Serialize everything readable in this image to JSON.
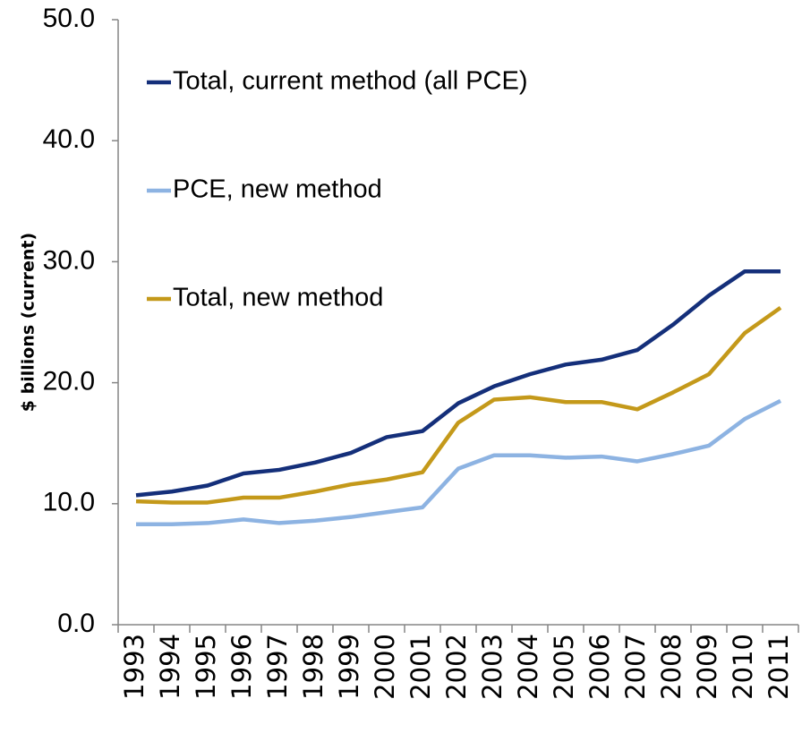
{
  "chart_data": {
    "type": "line",
    "y_label": "$ billions (current)",
    "categories": [
      "1993",
      "1994",
      "1995",
      "1996",
      "1997",
      "1998",
      "1999",
      "2000",
      "2001",
      "2002",
      "2003",
      "2004",
      "2005",
      "2006",
      "2007",
      "2008",
      "2009",
      "2010",
      "2011"
    ],
    "series": [
      {
        "name": "Total, current method (all PCE)",
        "color": "#142f7a",
        "values": [
          10.7,
          11.0,
          11.5,
          12.5,
          12.8,
          13.4,
          14.2,
          15.5,
          16.0,
          18.3,
          19.7,
          20.7,
          21.5,
          21.9,
          22.7,
          24.8,
          27.2,
          29.2,
          29.2
        ]
      },
      {
        "name": "PCE, new method",
        "color": "#8db3e2",
        "values": [
          8.3,
          8.3,
          8.4,
          8.7,
          8.4,
          8.6,
          8.9,
          9.3,
          9.7,
          12.9,
          14.0,
          14.0,
          13.8,
          13.9,
          13.5,
          14.1,
          14.8,
          17.0,
          18.5
        ]
      },
      {
        "name": "Total, new method",
        "color": "#c4991a",
        "values": [
          10.2,
          10.1,
          10.1,
          10.5,
          10.5,
          11.0,
          11.6,
          12.0,
          12.6,
          16.7,
          18.6,
          18.8,
          18.4,
          18.4,
          17.8,
          19.2,
          20.7,
          24.1,
          26.2
        ]
      }
    ],
    "ylim": [
      0,
      50
    ],
    "yticks": [
      {
        "value": 0,
        "label": "0.0"
      },
      {
        "value": 10,
        "label": "10.0"
      },
      {
        "value": 20,
        "label": "20.0"
      },
      {
        "value": 30,
        "label": "30.0"
      },
      {
        "value": 40,
        "label": "40.0"
      },
      {
        "value": 50,
        "label": "50.0"
      }
    ],
    "grid": false
  }
}
